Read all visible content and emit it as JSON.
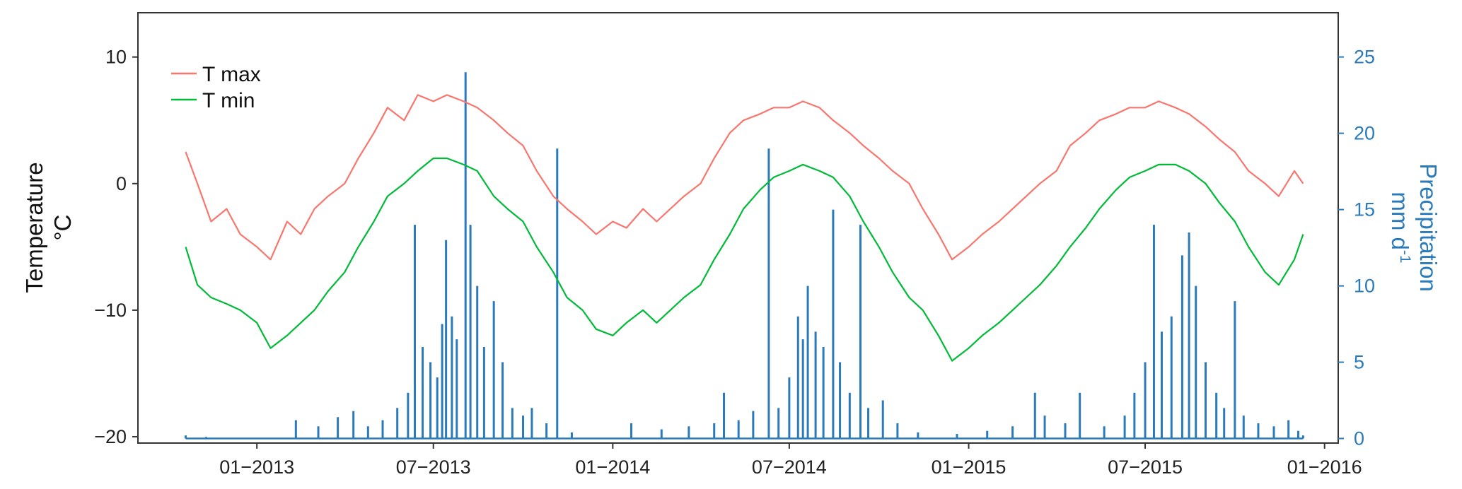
{
  "chart_data": {
    "type": "line",
    "x_axis": {
      "type": "date",
      "range": [
        "2012-09-01",
        "2016-01-15"
      ],
      "ticks": [
        "2013-01-01",
        "2013-07-01",
        "2014-01-01",
        "2014-07-01",
        "2015-01-01",
        "2015-07-01",
        "2016-01-01"
      ],
      "tick_labels": [
        "01−2013",
        "07−2013",
        "01−2014",
        "07−2014",
        "01−2015",
        "07−2015",
        "01−2016"
      ]
    },
    "y_left": {
      "label_line1": "Temperature",
      "label_line2": "°C",
      "ylim": [
        -20.5,
        13.5
      ],
      "ticks": [
        -20,
        -10,
        0,
        10
      ],
      "tick_labels": [
        "−20",
        "−10",
        "0",
        "10"
      ]
    },
    "y_right": {
      "label_line1": "Precipitation",
      "label_line2": "mm d",
      "label_sup": "-1",
      "ylim": [
        -0.3,
        27.9
      ],
      "ticks": [
        0,
        5,
        10,
        15,
        20,
        25
      ],
      "tick_labels": [
        "0",
        "5",
        "10",
        "15",
        "20",
        "25"
      ],
      "color": "#2b7bba"
    },
    "legend": {
      "position": "top-left"
    },
    "grid": false,
    "series": [
      {
        "name": "T max",
        "axis": "left",
        "color": "#f8766d",
        "points": [
          [
            "2012-10-20",
            2.5
          ],
          [
            "2012-11-01",
            0.0
          ],
          [
            "2012-11-15",
            -3.0
          ],
          [
            "2012-12-01",
            -2.0
          ],
          [
            "2012-12-15",
            -4.0
          ],
          [
            "2013-01-01",
            -5.0
          ],
          [
            "2013-01-15",
            -6.0
          ],
          [
            "2013-02-01",
            -3.0
          ],
          [
            "2013-02-15",
            -4.0
          ],
          [
            "2013-03-01",
            -2.0
          ],
          [
            "2013-03-15",
            -1.0
          ],
          [
            "2013-04-01",
            0.0
          ],
          [
            "2013-04-15",
            2.0
          ],
          [
            "2013-05-01",
            4.0
          ],
          [
            "2013-05-15",
            6.0
          ],
          [
            "2013-06-01",
            5.0
          ],
          [
            "2013-06-15",
            7.0
          ],
          [
            "2013-07-01",
            6.5
          ],
          [
            "2013-07-15",
            7.0
          ],
          [
            "2013-08-01",
            6.5
          ],
          [
            "2013-08-15",
            6.0
          ],
          [
            "2013-09-01",
            5.0
          ],
          [
            "2013-09-15",
            4.0
          ],
          [
            "2013-10-01",
            3.0
          ],
          [
            "2013-10-15",
            1.0
          ],
          [
            "2013-11-01",
            -1.0
          ],
          [
            "2013-11-15",
            -2.0
          ],
          [
            "2013-12-01",
            -3.0
          ],
          [
            "2013-12-15",
            -4.0
          ],
          [
            "2014-01-01",
            -3.0
          ],
          [
            "2014-01-15",
            -3.5
          ],
          [
            "2014-02-01",
            -2.0
          ],
          [
            "2014-02-15",
            -3.0
          ],
          [
            "2014-03-01",
            -2.0
          ],
          [
            "2014-03-15",
            -1.0
          ],
          [
            "2014-04-01",
            0.0
          ],
          [
            "2014-04-15",
            2.0
          ],
          [
            "2014-05-01",
            4.0
          ],
          [
            "2014-05-15",
            5.0
          ],
          [
            "2014-06-01",
            5.5
          ],
          [
            "2014-06-15",
            6.0
          ],
          [
            "2014-07-01",
            6.0
          ],
          [
            "2014-07-15",
            6.5
          ],
          [
            "2014-08-01",
            6.0
          ],
          [
            "2014-08-15",
            5.0
          ],
          [
            "2014-09-01",
            4.0
          ],
          [
            "2014-09-15",
            3.0
          ],
          [
            "2014-10-01",
            2.0
          ],
          [
            "2014-10-15",
            1.0
          ],
          [
            "2014-11-01",
            0.0
          ],
          [
            "2014-11-15",
            -2.0
          ],
          [
            "2014-12-01",
            -4.0
          ],
          [
            "2014-12-15",
            -6.0
          ],
          [
            "2015-01-01",
            -5.0
          ],
          [
            "2015-01-15",
            -4.0
          ],
          [
            "2015-02-01",
            -3.0
          ],
          [
            "2015-02-15",
            -2.0
          ],
          [
            "2015-03-01",
            -1.0
          ],
          [
            "2015-03-15",
            0.0
          ],
          [
            "2015-04-01",
            1.0
          ],
          [
            "2015-04-15",
            3.0
          ],
          [
            "2015-05-01",
            4.0
          ],
          [
            "2015-05-15",
            5.0
          ],
          [
            "2015-06-01",
            5.5
          ],
          [
            "2015-06-15",
            6.0
          ],
          [
            "2015-07-01",
            6.0
          ],
          [
            "2015-07-15",
            6.5
          ],
          [
            "2015-08-01",
            6.0
          ],
          [
            "2015-08-15",
            5.5
          ],
          [
            "2015-09-01",
            4.5
          ],
          [
            "2015-09-15",
            3.5
          ],
          [
            "2015-10-01",
            2.5
          ],
          [
            "2015-10-15",
            1.0
          ],
          [
            "2015-11-01",
            0.0
          ],
          [
            "2015-11-15",
            -1.0
          ],
          [
            "2015-12-01",
            1.0
          ],
          [
            "2015-12-10",
            0.0
          ]
        ]
      },
      {
        "name": "T min",
        "axis": "left",
        "color": "#00ba38",
        "points": [
          [
            "2012-10-20",
            -5.0
          ],
          [
            "2012-11-01",
            -8.0
          ],
          [
            "2012-11-15",
            -9.0
          ],
          [
            "2012-12-01",
            -9.5
          ],
          [
            "2012-12-15",
            -10.0
          ],
          [
            "2013-01-01",
            -11.0
          ],
          [
            "2013-01-15",
            -13.0
          ],
          [
            "2013-02-01",
            -12.0
          ],
          [
            "2013-02-15",
            -11.0
          ],
          [
            "2013-03-01",
            -10.0
          ],
          [
            "2013-03-15",
            -8.5
          ],
          [
            "2013-04-01",
            -7.0
          ],
          [
            "2013-04-15",
            -5.0
          ],
          [
            "2013-05-01",
            -3.0
          ],
          [
            "2013-05-15",
            -1.0
          ],
          [
            "2013-06-01",
            0.0
          ],
          [
            "2013-06-15",
            1.0
          ],
          [
            "2013-07-01",
            2.0
          ],
          [
            "2013-07-15",
            2.0
          ],
          [
            "2013-08-01",
            1.5
          ],
          [
            "2013-08-15",
            1.0
          ],
          [
            "2013-09-01",
            -1.0
          ],
          [
            "2013-09-15",
            -2.0
          ],
          [
            "2013-10-01",
            -3.0
          ],
          [
            "2013-10-15",
            -5.0
          ],
          [
            "2013-11-01",
            -7.0
          ],
          [
            "2013-11-15",
            -9.0
          ],
          [
            "2013-12-01",
            -10.0
          ],
          [
            "2013-12-15",
            -11.5
          ],
          [
            "2014-01-01",
            -12.0
          ],
          [
            "2014-01-15",
            -11.0
          ],
          [
            "2014-02-01",
            -10.0
          ],
          [
            "2014-02-15",
            -11.0
          ],
          [
            "2014-03-01",
            -10.0
          ],
          [
            "2014-03-15",
            -9.0
          ],
          [
            "2014-04-01",
            -8.0
          ],
          [
            "2014-04-15",
            -6.0
          ],
          [
            "2014-05-01",
            -4.0
          ],
          [
            "2014-05-15",
            -2.0
          ],
          [
            "2014-06-01",
            -0.5
          ],
          [
            "2014-06-15",
            0.5
          ],
          [
            "2014-07-01",
            1.0
          ],
          [
            "2014-07-15",
            1.5
          ],
          [
            "2014-08-01",
            1.0
          ],
          [
            "2014-08-15",
            0.5
          ],
          [
            "2014-09-01",
            -1.0
          ],
          [
            "2014-09-15",
            -3.0
          ],
          [
            "2014-10-01",
            -5.0
          ],
          [
            "2014-10-15",
            -7.0
          ],
          [
            "2014-11-01",
            -9.0
          ],
          [
            "2014-11-15",
            -10.0
          ],
          [
            "2014-12-01",
            -12.0
          ],
          [
            "2014-12-15",
            -14.0
          ],
          [
            "2015-01-01",
            -13.0
          ],
          [
            "2015-01-15",
            -12.0
          ],
          [
            "2015-02-01",
            -11.0
          ],
          [
            "2015-02-15",
            -10.0
          ],
          [
            "2015-03-01",
            -9.0
          ],
          [
            "2015-03-15",
            -8.0
          ],
          [
            "2015-04-01",
            -6.5
          ],
          [
            "2015-04-15",
            -5.0
          ],
          [
            "2015-05-01",
            -3.5
          ],
          [
            "2015-05-15",
            -2.0
          ],
          [
            "2015-06-01",
            -0.5
          ],
          [
            "2015-06-15",
            0.5
          ],
          [
            "2015-07-01",
            1.0
          ],
          [
            "2015-07-15",
            1.5
          ],
          [
            "2015-08-01",
            1.5
          ],
          [
            "2015-08-15",
            1.0
          ],
          [
            "2015-09-01",
            0.0
          ],
          [
            "2015-09-15",
            -1.5
          ],
          [
            "2015-10-01",
            -3.0
          ],
          [
            "2015-10-15",
            -5.0
          ],
          [
            "2015-11-01",
            -7.0
          ],
          [
            "2015-11-15",
            -8.0
          ],
          [
            "2015-12-01",
            -6.0
          ],
          [
            "2015-12-10",
            -4.0
          ]
        ]
      },
      {
        "name": "Precipitation",
        "axis": "right",
        "style": "spikes",
        "color": "#2b7bba",
        "points": [
          [
            "2012-10-20",
            0.2
          ],
          [
            "2012-11-10",
            0.1
          ],
          [
            "2013-02-10",
            1.2
          ],
          [
            "2013-03-05",
            0.8
          ],
          [
            "2013-03-25",
            1.4
          ],
          [
            "2013-04-10",
            1.8
          ],
          [
            "2013-04-25",
            0.8
          ],
          [
            "2013-05-10",
            1.2
          ],
          [
            "2013-05-25",
            2.0
          ],
          [
            "2013-06-05",
            3.0
          ],
          [
            "2013-06-12",
            14.0
          ],
          [
            "2013-06-20",
            6.0
          ],
          [
            "2013-06-28",
            5.0
          ],
          [
            "2013-07-05",
            4.0
          ],
          [
            "2013-07-10",
            7.5
          ],
          [
            "2013-07-14",
            13.0
          ],
          [
            "2013-07-20",
            8.0
          ],
          [
            "2013-07-25",
            6.5
          ],
          [
            "2013-08-03",
            24.0
          ],
          [
            "2013-08-08",
            14.0
          ],
          [
            "2013-08-15",
            10.0
          ],
          [
            "2013-08-22",
            6.0
          ],
          [
            "2013-09-01",
            9.0
          ],
          [
            "2013-09-10",
            5.0
          ],
          [
            "2013-09-20",
            2.0
          ],
          [
            "2013-10-01",
            1.5
          ],
          [
            "2013-10-10",
            2.0
          ],
          [
            "2013-10-25",
            1.0
          ],
          [
            "2013-11-05",
            19.0
          ],
          [
            "2013-11-20",
            0.4
          ],
          [
            "2014-01-20",
            1.0
          ],
          [
            "2014-02-20",
            0.6
          ],
          [
            "2014-03-20",
            0.8
          ],
          [
            "2014-04-15",
            1.0
          ],
          [
            "2014-04-25",
            3.0
          ],
          [
            "2014-05-10",
            1.2
          ],
          [
            "2014-05-25",
            1.8
          ],
          [
            "2014-06-10",
            19.0
          ],
          [
            "2014-06-20",
            2.0
          ],
          [
            "2014-07-01",
            4.0
          ],
          [
            "2014-07-10",
            8.0
          ],
          [
            "2014-07-15",
            6.5
          ],
          [
            "2014-07-20",
            10.0
          ],
          [
            "2014-07-28",
            7.0
          ],
          [
            "2014-08-05",
            6.0
          ],
          [
            "2014-08-15",
            15.0
          ],
          [
            "2014-08-22",
            5.0
          ],
          [
            "2014-09-01",
            3.0
          ],
          [
            "2014-09-12",
            14.0
          ],
          [
            "2014-09-20",
            2.0
          ],
          [
            "2014-10-05",
            2.5
          ],
          [
            "2014-10-20",
            1.0
          ],
          [
            "2014-11-10",
            0.4
          ],
          [
            "2014-12-20",
            0.3
          ],
          [
            "2015-01-20",
            0.5
          ],
          [
            "2015-02-15",
            0.8
          ],
          [
            "2015-03-10",
            3.0
          ],
          [
            "2015-03-20",
            1.5
          ],
          [
            "2015-04-10",
            1.0
          ],
          [
            "2015-04-25",
            3.0
          ],
          [
            "2015-05-20",
            0.8
          ],
          [
            "2015-06-10",
            1.5
          ],
          [
            "2015-06-20",
            3.0
          ],
          [
            "2015-07-01",
            5.0
          ],
          [
            "2015-07-10",
            14.0
          ],
          [
            "2015-07-18",
            7.0
          ],
          [
            "2015-07-28",
            8.0
          ],
          [
            "2015-08-08",
            12.0
          ],
          [
            "2015-08-15",
            13.5
          ],
          [
            "2015-08-22",
            10.0
          ],
          [
            "2015-09-01",
            5.0
          ],
          [
            "2015-09-12",
            3.0
          ],
          [
            "2015-09-20",
            2.0
          ],
          [
            "2015-10-01",
            9.0
          ],
          [
            "2015-10-10",
            1.5
          ],
          [
            "2015-10-25",
            1.0
          ],
          [
            "2015-11-10",
            0.8
          ],
          [
            "2015-11-25",
            1.2
          ],
          [
            "2015-12-05",
            0.5
          ],
          [
            "2015-12-10",
            0.2
          ]
        ]
      }
    ]
  }
}
